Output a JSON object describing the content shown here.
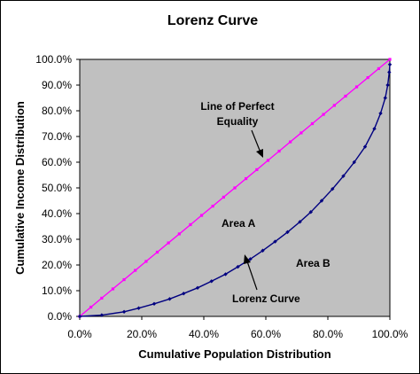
{
  "chart_data": {
    "type": "line",
    "title": "Lorenz Curve",
    "xlabel": "Cumulative Population Distribution",
    "ylabel": "Cumulative Income Distribution",
    "xlim": [
      0,
      100
    ],
    "ylim": [
      0,
      100
    ],
    "x_ticks": [
      "0.0%",
      "20.0%",
      "40.0%",
      "60.0%",
      "80.0%",
      "100.0%"
    ],
    "y_ticks": [
      "0.0%",
      "10.0%",
      "20.0%",
      "30.0%",
      "40.0%",
      "50.0%",
      "60.0%",
      "70.0%",
      "80.0%",
      "90.0%",
      "100.0%"
    ],
    "plot_background": "#c0c0c0",
    "grid": false,
    "series": [
      {
        "key": "equality",
        "color": "#ff00ff",
        "x": [
          0,
          3.6,
          7.1,
          10.7,
          14.3,
          17.9,
          21.4,
          25,
          28.6,
          32.1,
          35.7,
          39.3,
          42.9,
          46.4,
          50,
          53.6,
          57.1,
          60.7,
          64.3,
          67.9,
          71.4,
          75,
          78.6,
          82.1,
          85.7,
          89.3,
          92.9,
          96.4,
          100
        ],
        "y": [
          0,
          3.6,
          7.1,
          10.7,
          14.3,
          17.9,
          21.4,
          25,
          28.6,
          32.1,
          35.7,
          39.3,
          42.9,
          46.4,
          50,
          53.6,
          57.1,
          60.7,
          64.3,
          67.9,
          71.4,
          75,
          78.6,
          82.1,
          85.7,
          89.3,
          92.9,
          96.4,
          100
        ]
      },
      {
        "key": "lorenz",
        "color": "#000080",
        "x": [
          0,
          7.1,
          14.3,
          19,
          24,
          29,
          33.5,
          38,
          42.5,
          47,
          51,
          55,
          59,
          63,
          67,
          71,
          74.5,
          78,
          81.5,
          85,
          88.5,
          92,
          95,
          97,
          98.5,
          99.3,
          99.8,
          100
        ],
        "y": [
          0,
          0.5,
          1.8,
          3.2,
          4.9,
          6.8,
          8.9,
          11.1,
          13.7,
          16.4,
          19.3,
          22.3,
          25.6,
          29.1,
          32.8,
          36.8,
          40.6,
          45,
          49.6,
          54.6,
          60,
          66,
          73,
          79,
          85,
          90,
          95,
          98
        ]
      }
    ],
    "annotations": {
      "equality_line1": "Line of Perfect",
      "equality_line2": "Equality",
      "area_a": "Area A",
      "area_b": "Area B",
      "lorenz_label": "Lorenz Curve"
    }
  }
}
